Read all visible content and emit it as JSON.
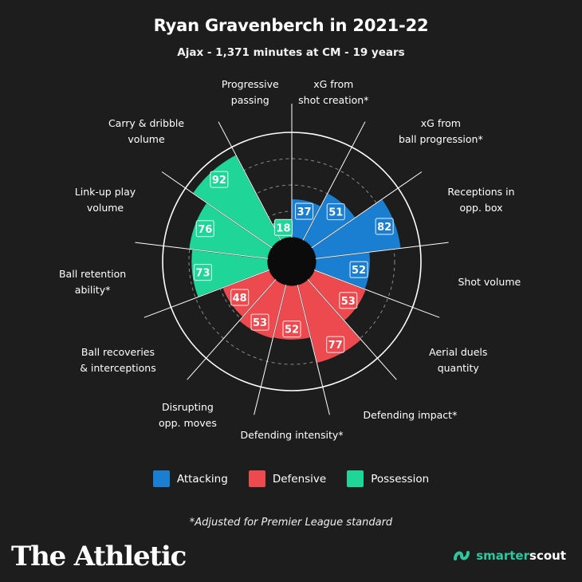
{
  "header": {
    "title": "Ryan Gravenberch in 2021-22",
    "subtitle": "Ajax - 1,371 minutes at CM - 19 years"
  },
  "chart_data": {
    "type": "radar-bar",
    "rmax": 100,
    "rings": [
      25,
      50,
      75,
      100
    ],
    "categories": [
      {
        "label": "xG from\nshot creation*",
        "value": 37,
        "group": "Attacking"
      },
      {
        "label": "xG from\nball progression*",
        "value": 51,
        "group": "Attacking"
      },
      {
        "label": "Receptions in\nopp. box",
        "value": 82,
        "group": "Attacking"
      },
      {
        "label": "Shot volume",
        "value": 52,
        "group": "Attacking"
      },
      {
        "label": "Aerial duels\nquantity",
        "value": 53,
        "group": "Defensive"
      },
      {
        "label": "Defending impact*",
        "value": 77,
        "group": "Defensive"
      },
      {
        "label": "Defending intensity*",
        "value": 52,
        "group": "Defensive"
      },
      {
        "label": "Disrupting\nopp. moves",
        "value": 53,
        "group": "Defensive"
      },
      {
        "label": "Ball recoveries\n& interceptions",
        "value": 48,
        "group": "Defensive"
      },
      {
        "label": "Ball retention\nability*",
        "value": 73,
        "group": "Possession"
      },
      {
        "label": "Link-up play\nvolume",
        "value": 76,
        "group": "Possession"
      },
      {
        "label": "Carry & dribble\nvolume",
        "value": 92,
        "group": "Possession"
      },
      {
        "label": "Progressive\npassing",
        "value": 18,
        "group": "Possession"
      }
    ],
    "groups": [
      {
        "name": "Attacking",
        "color": "#1a7fd1"
      },
      {
        "name": "Defensive",
        "color": "#ec4a4f"
      },
      {
        "name": "Possession",
        "color": "#1fd597"
      }
    ]
  },
  "footnote": "*Adjusted for Premier League standard",
  "branding": {
    "publisher": "The Athletic",
    "partner_prefix": "smarter",
    "partner_suffix": "scout",
    "partner_icon": "smarterscout-logo-icon"
  }
}
